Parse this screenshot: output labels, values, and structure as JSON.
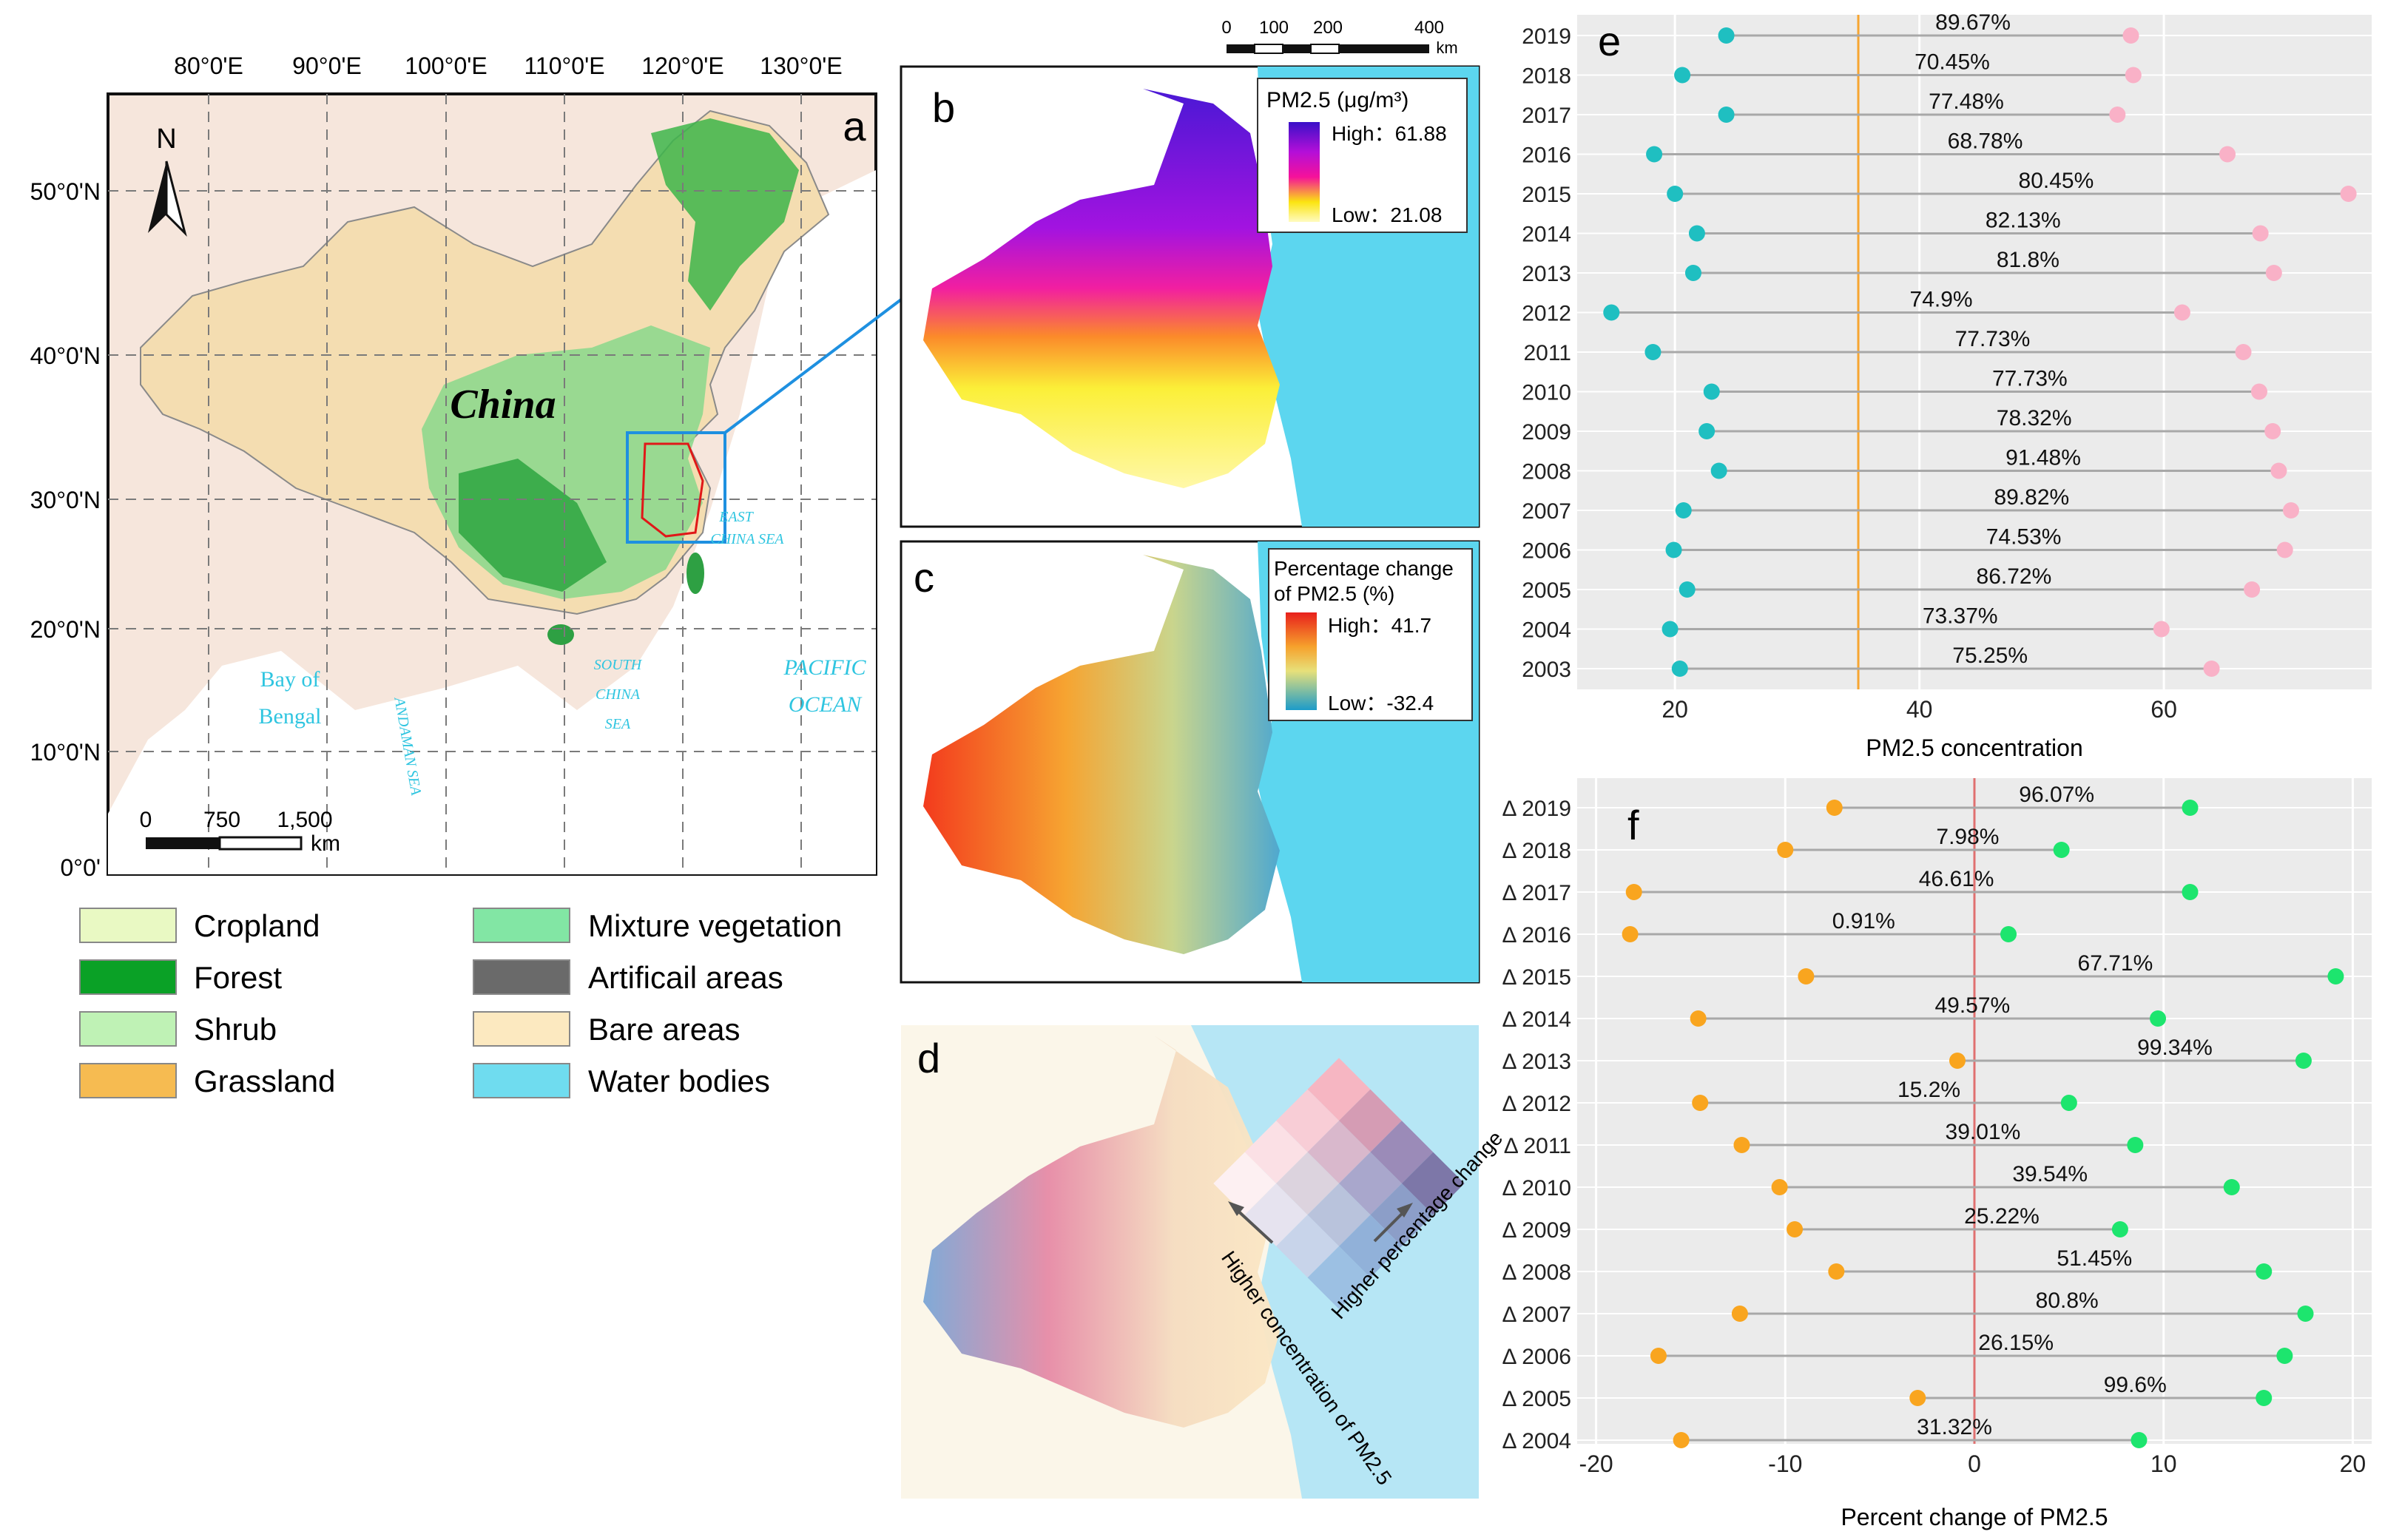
{
  "panel_a": {
    "label": "a",
    "country_label": "China",
    "north_label": "N",
    "lon_ticks": [
      "80°0'E",
      "90°0'E",
      "100°0'E",
      "110°0'E",
      "120°0'E",
      "130°0'E"
    ],
    "lat_ticks": [
      "50°0'N",
      "40°0'N",
      "30°0'N",
      "20°0'N",
      "10°0'N",
      "0°0'"
    ],
    "sea_labels": {
      "bay1": "Bay of",
      "bay2": "Bengal",
      "pacific1": "PACIFIC",
      "pacific2": "OCEAN",
      "scs1": "SOUTH",
      "scs2": "CHINA",
      "scs3": "SEA",
      "ecs1": "EAST",
      "ecs2": "CHINA SEA",
      "andaman": "ANDAMAN SEA"
    },
    "scalebar": {
      "t0": "0",
      "t1": "750",
      "t2": "1,500",
      "unit": "km"
    }
  },
  "legend": [
    {
      "label": "Cropland",
      "color": "#e9f9c3"
    },
    {
      "label": "Forest",
      "color": "#0aa126"
    },
    {
      "label": "Shrub",
      "color": "#bff2b5"
    },
    {
      "label": "Grassland",
      "color": "#f6bb51"
    },
    {
      "label": "Mixture vegetation",
      "color": "#82e6a4"
    },
    {
      "label": "Artificail areas",
      "color": "#6a6a6a"
    },
    {
      "label": "Bare areas",
      "color": "#fce9c0"
    },
    {
      "label": "Water bodies",
      "color": "#6fdcef"
    }
  ],
  "panel_b": {
    "label": "b",
    "legend_title": "PM2.5 (μg/m³)",
    "high": "High：61.88",
    "low": "Low：21.08",
    "scalebar": {
      "t0": "0",
      "t1": "100",
      "t2": "200",
      "t3": "400",
      "unit": "km"
    }
  },
  "panel_c": {
    "label": "c",
    "legend_title1": "Percentage change",
    "legend_title2": "of PM2.5 (%)",
    "high": "High：41.7",
    "low": "Low：-32.4"
  },
  "panel_d": {
    "label": "d",
    "arrow1": "Higher concentration of PM2.5",
    "arrow2": "Higher percentage change"
  },
  "chart_data": [
    {
      "type": "dumbbell",
      "panel": "e",
      "xlabel": "PM2.5 concentration",
      "xlim": [
        12,
        77
      ],
      "xticks": [
        20,
        40,
        60
      ],
      "ref_line": 35,
      "categories": [
        "2019",
        "2018",
        "2017",
        "2016",
        "2015",
        "2014",
        "2013",
        "2012",
        "2011",
        "2010",
        "2009",
        "2008",
        "2007",
        "2006",
        "2005",
        "2004",
        "2003"
      ],
      "low": [
        24.2,
        20.6,
        24.2,
        18.3,
        20.0,
        21.8,
        21.5,
        14.8,
        18.2,
        23.0,
        22.6,
        23.6,
        20.7,
        19.9,
        21.0,
        19.6,
        20.4
      ],
      "high": [
        57.3,
        57.5,
        56.2,
        65.2,
        75.1,
        67.9,
        69.0,
        61.5,
        66.5,
        67.8,
        68.9,
        69.4,
        70.4,
        69.9,
        67.2,
        59.8,
        63.9
      ],
      "labels": [
        "89.67%",
        "70.45%",
        "77.48%",
        "68.78%",
        "80.45%",
        "82.13%",
        "81.8%",
        "74.9%",
        "77.73%",
        "77.73%",
        "78.32%",
        "91.48%",
        "89.82%",
        "74.53%",
        "86.72%",
        "73.37%",
        "75.25%"
      ],
      "low_color": "#1fbfc1",
      "high_color": "#f9b1c7"
    },
    {
      "type": "dumbbell",
      "panel": "f",
      "xlabel": "Percent change of PM2.5",
      "xlim": [
        -21,
        21
      ],
      "xticks": [
        -20,
        -10,
        0,
        10,
        20
      ],
      "ref_line": 0,
      "categories": [
        "Δ 2019",
        "Δ 2018",
        "Δ 2017",
        "Δ 2016",
        "Δ 2015",
        "Δ 2014",
        "Δ 2013",
        "Δ 2012",
        "Δ 2011",
        "Δ 2010",
        "Δ 2009",
        "Δ 2008",
        "Δ 2007",
        "Δ 2006",
        "Δ 2005",
        "Δ 2004"
      ],
      "low": [
        -7.4,
        -10.0,
        -18.0,
        -18.2,
        -8.9,
        -14.6,
        -0.9,
        -14.5,
        -12.3,
        -10.3,
        -9.5,
        -7.3,
        -12.4,
        -16.7,
        -3.0,
        -15.5
      ],
      "high": [
        11.4,
        4.6,
        11.4,
        1.8,
        19.1,
        9.7,
        17.4,
        5.0,
        8.5,
        13.6,
        7.7,
        15.3,
        17.5,
        16.4,
        15.3,
        8.7
      ],
      "labels": [
        "96.07%",
        "7.98%",
        "46.61%",
        "0.91%",
        "67.71%",
        "49.57%",
        "99.34%",
        "15.2%",
        "39.01%",
        "39.54%",
        "25.22%",
        "51.45%",
        "80.8%",
        "26.15%",
        "99.6%",
        "31.32%"
      ],
      "low_color": "#f9a51f",
      "high_color": "#1de56e"
    }
  ]
}
